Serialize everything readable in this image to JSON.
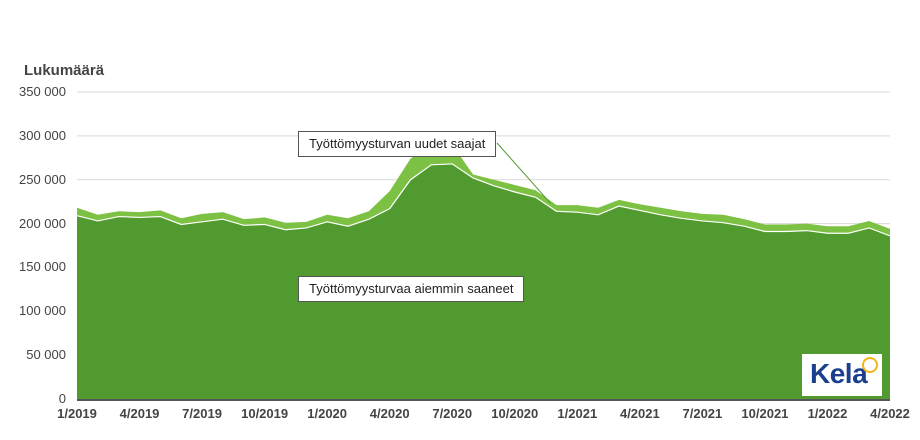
{
  "chart": {
    "ylabel": "Lukumäärä",
    "yticks": [
      "350 000",
      "300 000",
      "250 000",
      "200 000",
      "150 000",
      "100 000",
      "50 000",
      "0"
    ],
    "xticks": [
      "1/2019",
      "4/2019",
      "7/2019",
      "10/2019",
      "1/2020",
      "4/2020",
      "7/2020",
      "10/2020",
      "1/2021",
      "4/2021",
      "7/2021",
      "10/2021",
      "1/2022",
      "4/2022"
    ],
    "annotations": {
      "new": "Työttömyysturvan uudet saajat",
      "prior": "Työttömyysturvaa aiemmin saaneet"
    },
    "colors": {
      "prior": "#519a2f",
      "new": "#7cc144",
      "grid": "#d9d9d9",
      "axis": "#555555"
    },
    "logo": "Kela"
  },
  "chart_data": {
    "type": "area",
    "stacked": true,
    "title": "",
    "xlabel": "",
    "ylabel": "Lukumäärä",
    "ylim": [
      0,
      350000
    ],
    "grid": true,
    "x": [
      "1/2019",
      "2/2019",
      "3/2019",
      "4/2019",
      "5/2019",
      "6/2019",
      "7/2019",
      "8/2019",
      "9/2019",
      "10/2019",
      "11/2019",
      "12/2019",
      "1/2020",
      "2/2020",
      "3/2020",
      "4/2020",
      "5/2020",
      "6/2020",
      "7/2020",
      "8/2020",
      "9/2020",
      "10/2020",
      "11/2020",
      "12/2020",
      "1/2021",
      "2/2021",
      "3/2021",
      "4/2021",
      "5/2021",
      "6/2021",
      "7/2021",
      "8/2021",
      "9/2021",
      "10/2021",
      "11/2021",
      "12/2021",
      "1/2022",
      "2/2022",
      "3/2022",
      "4/2022"
    ],
    "series": [
      {
        "name": "Työttömyysturvaa aiemmin saaneet",
        "values": [
          209000,
          203000,
          208000,
          207000,
          208000,
          199000,
          202000,
          205000,
          198000,
          199000,
          193000,
          195000,
          202000,
          197000,
          205000,
          217000,
          250000,
          267000,
          268000,
          252000,
          243000,
          236000,
          230000,
          214000,
          213000,
          210000,
          220000,
          215000,
          210000,
          206000,
          203000,
          201000,
          197000,
          191000,
          191000,
          192000,
          189000,
          189000,
          195000,
          186000
        ]
      },
      {
        "name": "Työttömyysturvan uudet saajat",
        "values": [
          9000,
          7000,
          6000,
          6000,
          7000,
          7000,
          9000,
          8000,
          7000,
          8000,
          8000,
          7000,
          8000,
          9000,
          9000,
          20000,
          24000,
          23000,
          22000,
          4000,
          7000,
          8000,
          8000,
          7000,
          8000,
          8000,
          7000,
          7000,
          8000,
          8000,
          8000,
          9000,
          8000,
          8000,
          8000,
          8000,
          8000,
          8000,
          8000,
          8000
        ]
      }
    ],
    "legend": "inline annotations"
  }
}
